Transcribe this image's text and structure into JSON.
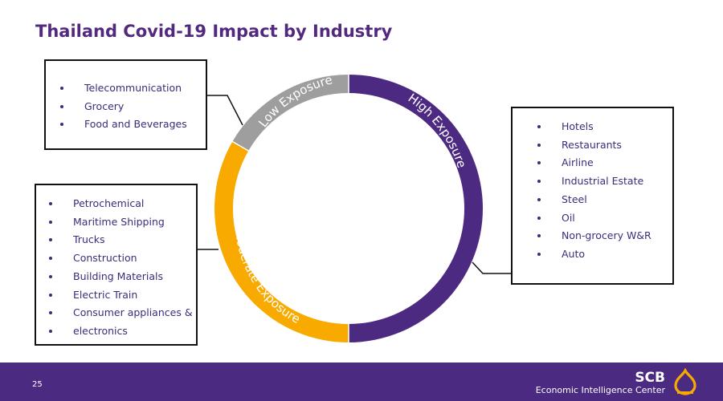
{
  "title": "Thailand Covid-19 Impact by Industry",
  "segments": {
    "low": {
      "label": "Low Exposure",
      "color": "#9e9e9e"
    },
    "moderate": {
      "label": "Moderate Exposure",
      "color": "#f8aa00"
    },
    "high": {
      "label": "High Exposure",
      "color": "#4d2a81"
    }
  },
  "low_items": [
    "Telecommunication",
    "Grocery",
    "Food and Beverages"
  ],
  "moderate_items": [
    "Petrochemical",
    "Maritime Shipping",
    "Trucks",
    "Construction",
    "Building Materials",
    "Electric Train",
    "Consumer appliances &",
    "electronics"
  ],
  "high_items": [
    "Hotels",
    "Restaurants",
    "Airline",
    "Industrial Estate",
    "Steel",
    "Oil",
    "Non-grocery W&R",
    "Auto"
  ],
  "footer": {
    "page_number": "25",
    "brand_name": "SCB",
    "brand_sub": "Economic Intelligence Center"
  }
}
